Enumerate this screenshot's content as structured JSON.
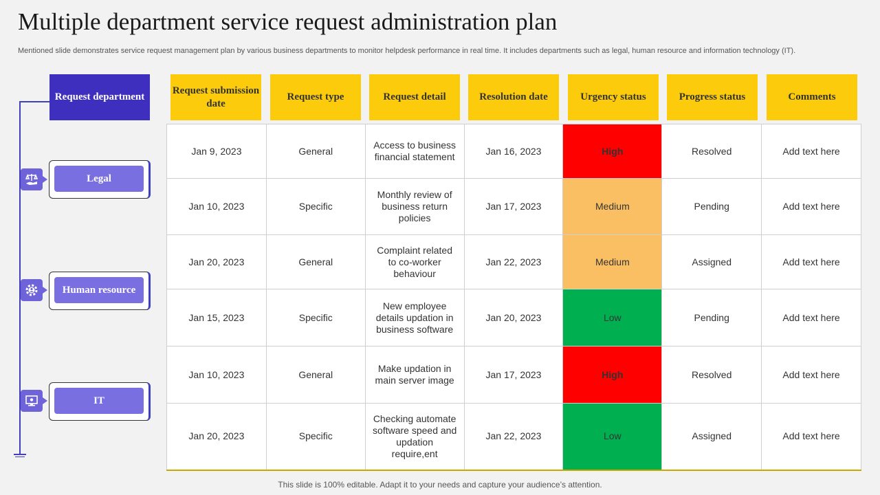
{
  "title": "Multiple department service request administration plan",
  "subtitle": "Mentioned slide demonstrates service request management plan by various business departments to monitor helpdesk performance in real time. It includes departments such as legal, human resource and information technology (IT).",
  "footer": "This slide is 100% editable. Adapt it to your needs and capture your audience’s attention.",
  "department_header": "Request department",
  "departments": [
    {
      "label": "Legal",
      "icon": "legal-scale-icon"
    },
    {
      "label": "Human resource",
      "icon": "gear-people-icon"
    },
    {
      "label": "IT",
      "icon": "computer-monitor-icon"
    }
  ],
  "columns": [
    "Request submission date",
    "Request type",
    "Request detail",
    "Resolution date",
    "Urgency status",
    "Progress status",
    "Comments"
  ],
  "rows": [
    {
      "submission": "Jan 9, 2023",
      "type": "General",
      "detail": "Access to business financial statement",
      "resolution": "Jan 16, 2023",
      "urgency": "High",
      "progress": "Resolved",
      "comments": "Add text here"
    },
    {
      "submission": "Jan 10, 2023",
      "type": "Specific",
      "detail": "Monthly review of business return policies",
      "resolution": "Jan 17, 2023",
      "urgency": "Medium",
      "progress": "Pending",
      "comments": "Add text here"
    },
    {
      "submission": "Jan 20, 2023",
      "type": "General",
      "detail": "Complaint related to co-worker behaviour",
      "resolution": "Jan 22, 2023",
      "urgency": "Medium",
      "progress": "Assigned",
      "comments": "Add text here"
    },
    {
      "submission": "Jan 15, 2023",
      "type": "Specific",
      "detail": "New employee details updation in business software",
      "resolution": "Jan 20, 2023",
      "urgency": "Low",
      "progress": "Pending",
      "comments": "Add text here"
    },
    {
      "submission": "Jan 10, 2023",
      "type": "General",
      "detail": "Make updation in main server image",
      "resolution": "Jan 17, 2023",
      "urgency": "High",
      "progress": "Resolved",
      "comments": "Add text here"
    },
    {
      "submission": "Jan 20, 2023",
      "type": "Specific",
      "detail": "Checking automate software speed and updation require,ent",
      "resolution": "Jan 22, 2023",
      "urgency": "Low",
      "progress": "Assigned",
      "comments": "Add text here"
    }
  ],
  "colors": {
    "header_yellow": "#fccc0c",
    "department_blue": "#3f2fbf",
    "department_pill": "#7a6fe0",
    "urgency_high": "#ff0000",
    "urgency_medium": "#fbbf63",
    "urgency_low": "#00b050"
  }
}
